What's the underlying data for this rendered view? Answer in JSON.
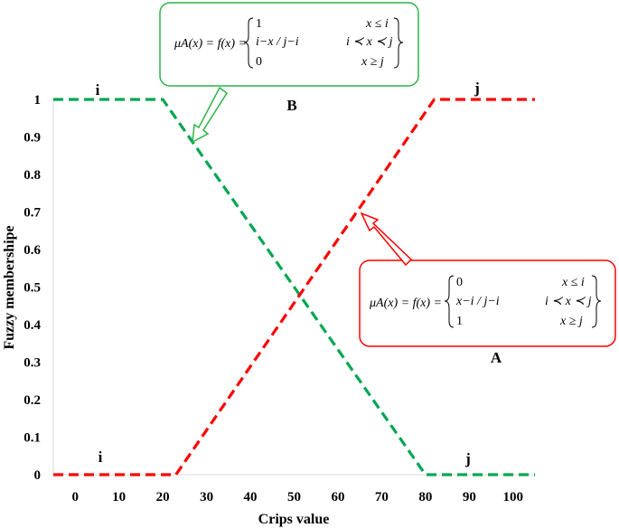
{
  "chart_data": {
    "type": "line",
    "xlabel": "Crips value",
    "ylabel": "Fuzzy membershipe",
    "xlim": [
      -5,
      105
    ],
    "ylim": [
      0,
      1
    ],
    "x_ticks": [
      "0",
      "10",
      "20",
      "30",
      "40",
      "50",
      "60",
      "70",
      "80",
      "90",
      "100"
    ],
    "y_ticks": [
      "0",
      "0.1",
      "0.2",
      "0.3",
      "0.4",
      "0.5",
      "0.6",
      "0.7",
      "0.8",
      "0.9",
      "1"
    ],
    "series": [
      {
        "color": "#00a651",
        "style": "dashed",
        "points": [
          [
            -5,
            1
          ],
          [
            20,
            1
          ],
          [
            80,
            0
          ],
          [
            105,
            0
          ]
        ]
      },
      {
        "color": "#ff0000",
        "style": "dashed",
        "points": [
          [
            -5,
            0
          ],
          [
            23,
            0
          ],
          [
            82,
            1
          ],
          [
            105,
            1
          ]
        ]
      }
    ],
    "point_labels": {
      "green_top": "i",
      "green_bottom": "j",
      "red_bottom": "i",
      "red_top": "j"
    },
    "annotations": {
      "B": {
        "label": "B",
        "color": "#2db34a",
        "lhs": "μA(x) = f(x) =",
        "rows": [
          {
            "value": "1",
            "condition": "x ≤ i"
          },
          {
            "value": "i−x / j−i",
            "condition": "i ≺ x ≺ j"
          },
          {
            "value": "0",
            "condition": "x ≥ j"
          }
        ]
      },
      "A": {
        "label": "A",
        "color": "#ff0000",
        "lhs": "μA(x) = f(x) =",
        "rows": [
          {
            "value": "0",
            "condition": "x ≤ i"
          },
          {
            "value": "x−i / j−i",
            "condition": "i ≺ x ≺ j"
          },
          {
            "value": "1",
            "condition": "x ≥ j"
          }
        ]
      }
    }
  }
}
